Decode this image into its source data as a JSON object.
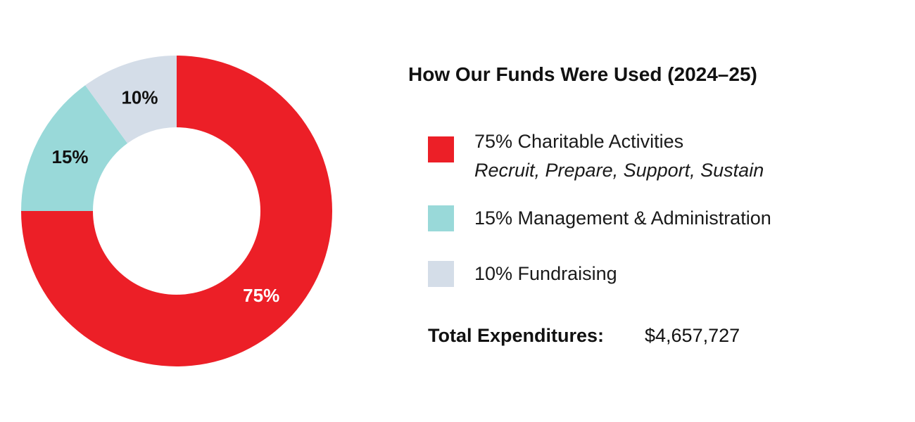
{
  "chart_data": {
    "type": "pie",
    "title": "How Our Funds Were Used (2024–25)",
    "slices": [
      {
        "label": "75% Charitable Activities",
        "value": 75,
        "color": "#ec1f27",
        "label_color": "#ffffff",
        "display": "75%"
      },
      {
        "label": "15% Management & Administration",
        "value": 15,
        "color": "#99d9d9",
        "label_color": "#111111",
        "display": "15%"
      },
      {
        "label": "10% Fundraising",
        "value": 10,
        "color": "#d4dde8",
        "label_color": "#111111",
        "display": "10%"
      }
    ]
  },
  "legend": [
    {
      "text": "75% Charitable Activities",
      "subtext": "Recruit, Prepare, Support, Sustain",
      "color": "#ec1f27"
    },
    {
      "text": "15% Management & Administration",
      "color": "#99d9d9"
    },
    {
      "text": "10% Fundraising",
      "color": "#d4dde8"
    }
  ],
  "total": {
    "label": "Total Expenditures:",
    "value": "$4,657,727"
  }
}
